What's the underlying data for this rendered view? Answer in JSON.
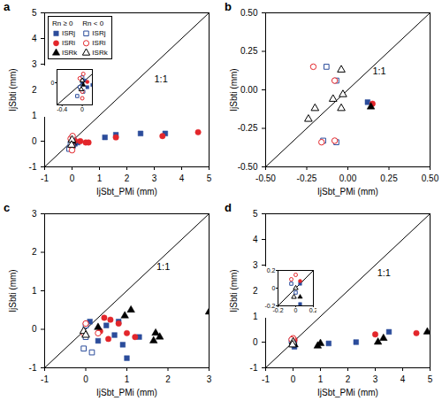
{
  "chart_data": [
    {
      "type": "scatter",
      "title": "a",
      "x_label": "IjSbt_PMi (mm)",
      "y_label": "IjSbti (mm)",
      "xlim": [
        -1,
        5
      ],
      "ylim": [
        -1,
        5
      ],
      "xticks": [
        -1,
        0,
        1,
        2,
        3,
        4,
        5
      ],
      "yticks": [
        -1,
        0,
        1,
        2,
        3,
        4,
        5
      ],
      "legend": "top-left",
      "annotations": [
        {
          "text": "1:1",
          "x": 3.0,
          "y": 2.4
        }
      ],
      "series": [
        {
          "type": "line",
          "color": "#000000",
          "x": [
            -1,
            5
          ],
          "y": [
            -1,
            5
          ]
        },
        {
          "type": "scatter",
          "name": "ISRj",
          "group": "Rn ≥ 0",
          "color": "#2b4c9b",
          "marker": "square",
          "x": [
            0,
            0.05,
            0.1,
            0.2,
            1.2,
            1.6,
            2.5,
            3.4
          ],
          "y": [
            0,
            0.05,
            -0.1,
            -0.05,
            0.15,
            0.25,
            0.3,
            0.3
          ]
        },
        {
          "type": "scatter",
          "name": "ISRi",
          "group": "Rn ≥ 0",
          "color": "#e3262b",
          "marker": "circle",
          "x": [
            0.1,
            0.3,
            0.5,
            0.6,
            1.6,
            3.3,
            4.6
          ],
          "y": [
            0.02,
            0,
            -0.05,
            -0.05,
            0.15,
            0.2,
            0.35
          ]
        },
        {
          "type": "scatter",
          "name": "ISRk",
          "group": "Rn ≥ 0",
          "color": "#000000",
          "marker": "triangle",
          "x": [
            0.02
          ],
          "y": [
            -0.05
          ]
        },
        {
          "type": "scatter",
          "name": "ISRj",
          "group": "Rn < 0",
          "color": "#2b4c9b",
          "marker": "square-open",
          "x": [
            -0.05,
            0,
            -0.1,
            0.02
          ],
          "y": [
            -0.1,
            0.12,
            -0.3,
            -0.2
          ]
        },
        {
          "type": "scatter",
          "name": "ISRi",
          "group": "Rn < 0",
          "color": "#e3262b",
          "marker": "circle-open",
          "x": [
            0,
            -0.05,
            0,
            0.02
          ],
          "y": [
            -0.2,
            0.1,
            -0.35,
            0.2
          ]
        },
        {
          "type": "scatter",
          "name": "ISRk",
          "group": "Rn < 0",
          "color": "#000000",
          "marker": "triangle-open",
          "x": [
            0,
            -0.02
          ],
          "y": [
            0.05,
            -0.15
          ]
        }
      ],
      "inset": {
        "xlim": [
          -0.5,
          0.2
        ],
        "ylim": [
          -0.5,
          0.3
        ],
        "xticks": [
          -0.4,
          0
        ],
        "yticks": [
          0
        ]
      }
    },
    {
      "type": "scatter",
      "title": "b",
      "x_label": "IjSbt_PMi (mm)",
      "y_label": "IjSbti (mm)",
      "xlim": [
        -0.5,
        0.5
      ],
      "ylim": [
        -0.5,
        0.5
      ],
      "xticks": [
        {
          "value": -0.5,
          "label": "-0.50"
        },
        {
          "value": -0.25,
          "label": "-0.25"
        },
        {
          "value": 0,
          "label": "0.00"
        },
        {
          "value": 0.25,
          "label": "0.25"
        },
        {
          "value": 0.5,
          "label": "0.50"
        }
      ],
      "yticks": [
        {
          "value": -0.5,
          "label": "-0.50"
        },
        {
          "value": -0.25,
          "label": "-0.25"
        },
        {
          "value": 0,
          "label": "0.00"
        },
        {
          "value": 0.25,
          "label": "0.25"
        },
        {
          "value": 0.5,
          "label": "0.50"
        }
      ],
      "annotations": [
        {
          "text": "1:1",
          "x": 0.15,
          "y": 0.12
        }
      ],
      "series": [
        {
          "type": "line",
          "color": "#000000",
          "x": [
            -0.5,
            0.5
          ],
          "y": [
            -0.5,
            0.5
          ]
        },
        {
          "type": "scatter",
          "color": "#2b4c9b",
          "marker": "square",
          "x": [
            0.12
          ],
          "y": [
            -0.08
          ]
        },
        {
          "type": "scatter",
          "color": "#e3262b",
          "marker": "circle",
          "x": [
            0.15
          ],
          "y": [
            -0.09
          ]
        },
        {
          "type": "scatter",
          "color": "#000000",
          "marker": "triangle",
          "x": [
            0.14
          ],
          "y": [
            -0.11
          ]
        },
        {
          "type": "scatter",
          "color": "#2b4c9b",
          "marker": "square-open",
          "x": [
            -0.13,
            -0.07,
            -0.15,
            -0.07
          ],
          "y": [
            0.15,
            0.06,
            -0.33,
            -0.34
          ]
        },
        {
          "type": "scatter",
          "color": "#e3262b",
          "marker": "circle-open",
          "x": [
            -0.21,
            -0.08,
            -0.16,
            -0.08
          ],
          "y": [
            0.15,
            0.06,
            -0.34,
            -0.33
          ]
        },
        {
          "type": "scatter",
          "color": "#000000",
          "marker": "triangle-open",
          "x": [
            -0.24,
            -0.2,
            -0.09,
            -0.04,
            -0.03,
            -0.04
          ],
          "y": [
            -0.19,
            -0.12,
            -0.06,
            -0.12,
            -0.03,
            0.13
          ]
        }
      ]
    },
    {
      "type": "scatter",
      "title": "c",
      "x_label": "IjSbt_PMi (mm)",
      "y_label": "IjSbti (mm)",
      "xlim": [
        -1,
        3
      ],
      "ylim": [
        -1,
        3
      ],
      "xticks": [
        -1,
        0,
        1,
        2,
        3
      ],
      "yticks": [
        -1,
        0,
        1,
        2,
        3
      ],
      "annotations": [
        {
          "text": "1:1",
          "x": 1.72,
          "y": 1.62
        }
      ],
      "series": [
        {
          "type": "line",
          "color": "#000000",
          "x": [
            -1,
            3
          ],
          "y": [
            -1,
            3
          ]
        },
        {
          "type": "scatter",
          "color": "#2b4c9b",
          "marker": "square",
          "x": [
            0.1,
            0.5,
            0.7,
            0.9,
            1.0,
            1.3,
            0.3,
            0.8
          ],
          "y": [
            0.2,
            0.1,
            -0.15,
            -0.4,
            -0.75,
            -0.2,
            -0.3,
            0.2
          ]
        },
        {
          "type": "scatter",
          "color": "#e3262b",
          "marker": "circle",
          "x": [
            0.35,
            0.6,
            0.8,
            1.0,
            1.2,
            0.55,
            0.45
          ],
          "y": [
            -0.05,
            0.25,
            0.15,
            -0.1,
            -0.2,
            -0.25,
            0.3
          ]
        },
        {
          "type": "scatter",
          "color": "#000000",
          "marker": "triangle",
          "x": [
            1.7,
            1.8,
            1.65,
            3.0,
            1.1,
            0.95,
            0.3
          ],
          "y": [
            -0.1,
            -0.2,
            -0.3,
            0.45,
            0.5,
            0.35,
            0.05
          ]
        },
        {
          "type": "scatter",
          "color": "#2b4c9b",
          "marker": "square-open",
          "x": [
            0,
            -0.05,
            0.15,
            0
          ],
          "y": [
            -0.2,
            -0.5,
            -0.6,
            0.1
          ]
        },
        {
          "type": "scatter",
          "color": "#e3262b",
          "marker": "circle-open",
          "x": [
            0,
            -0.05,
            0.3
          ],
          "y": [
            0.15,
            -0.1,
            -0.1
          ]
        },
        {
          "type": "scatter",
          "color": "#000000",
          "marker": "triangle-open",
          "x": [
            -0.05,
            0
          ],
          "y": [
            -0.05,
            -0.15
          ]
        }
      ]
    },
    {
      "type": "scatter",
      "title": "d",
      "x_label": "IjSbt_PMi (mm)",
      "y_label": "IjSbti (mm)",
      "xlim": [
        -1,
        5
      ],
      "ylim": [
        -1,
        5
      ],
      "xticks": [
        -1,
        0,
        1,
        2,
        3,
        4,
        5
      ],
      "yticks": [
        -1,
        0,
        1,
        2,
        3,
        4,
        5
      ],
      "annotations": [
        {
          "text": "1:1",
          "x": 3.07,
          "y": 2.69
        }
      ],
      "series": [
        {
          "type": "line",
          "color": "#000000",
          "x": [
            -1,
            5
          ],
          "y": [
            -1,
            5
          ]
        },
        {
          "type": "scatter",
          "color": "#2b4c9b",
          "marker": "square",
          "x": [
            1.3,
            2.3,
            3.5,
            0.05,
            0.05
          ],
          "y": [
            -0.05,
            0,
            0.4,
            0.05,
            -0.18
          ]
        },
        {
          "type": "scatter",
          "color": "#e3262b",
          "marker": "circle",
          "x": [
            3.0,
            4.5,
            0.05
          ],
          "y": [
            0.3,
            0.35,
            0.08
          ]
        },
        {
          "type": "scatter",
          "color": "#000000",
          "marker": "triangle",
          "x": [
            0.9,
            1.0,
            3.3,
            4.9,
            3.1,
            0.05
          ],
          "y": [
            -0.15,
            -0.05,
            0.15,
            0.4,
            0,
            -0.1
          ]
        },
        {
          "type": "scatter",
          "color": "#2b4c9b",
          "marker": "square-open",
          "x": [
            -0.05,
            0
          ],
          "y": [
            0.05,
            -0.05
          ]
        },
        {
          "type": "scatter",
          "color": "#e3262b",
          "marker": "circle-open",
          "x": [
            0,
            -0.05
          ],
          "y": [
            0.15,
            0.1
          ]
        },
        {
          "type": "scatter",
          "color": "#000000",
          "marker": "triangle-open",
          "x": [
            0,
            -0.02
          ],
          "y": [
            0,
            -0.1
          ]
        }
      ],
      "inset": {
        "xlim": [
          -0.2,
          0.2
        ],
        "ylim": [
          -0.2,
          0.2
        ],
        "xticks": [
          -0.2,
          0,
          0.2
        ],
        "yticks": [
          -0.2,
          0,
          0.2
        ]
      }
    }
  ]
}
